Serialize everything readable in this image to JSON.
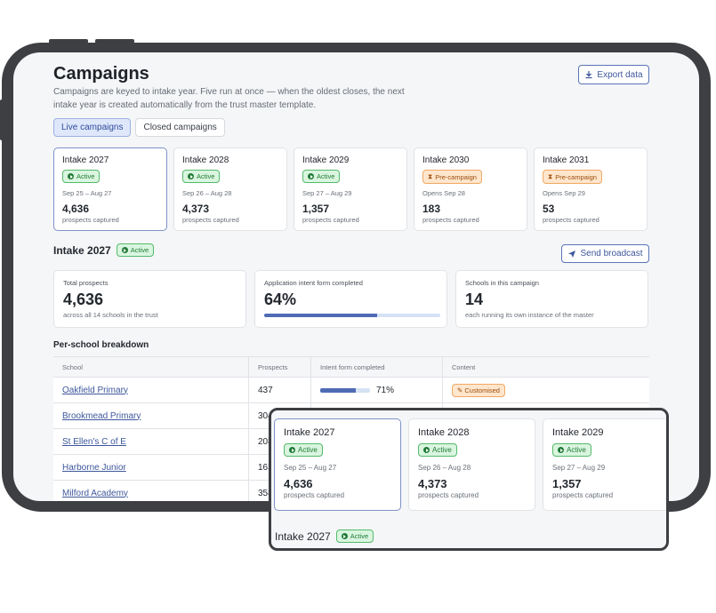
{
  "page": {
    "title": "Campaigns",
    "description": "Campaigns are keyed to intake year. Five run at once — when the oldest closes, the next intake year is created automatically from the trust master template.",
    "export_label": "Export data"
  },
  "tabs": [
    {
      "label": "Live campaigns",
      "active": true
    },
    {
      "label": "Closed campaigns",
      "active": false
    }
  ],
  "campaigns": [
    {
      "title": "Intake 2027",
      "status": "Active",
      "dates": "Sep 25 – Aug 27",
      "count": "4,636",
      "sub": "prospects captured"
    },
    {
      "title": "Intake 2028",
      "status": "Active",
      "dates": "Sep 26 – Aug 28",
      "count": "4,373",
      "sub": "prospects captured"
    },
    {
      "title": "Intake 2029",
      "status": "Active",
      "dates": "Sep 27 – Aug 29",
      "count": "1,357",
      "sub": "prospects captured"
    },
    {
      "title": "Intake 2030",
      "status": "Pre-campaign",
      "dates": "Opens Sep 28",
      "count": "183",
      "sub": "prospects captured"
    },
    {
      "title": "Intake 2031",
      "status": "Pre-campaign",
      "dates": "Opens Sep 29",
      "count": "53",
      "sub": "prospects captured"
    }
  ],
  "detail": {
    "title": "Intake 2027",
    "status": "Active",
    "broadcast_label": "Send broadcast",
    "stats": [
      {
        "label": "Total prospects",
        "value": "4,636",
        "sub": "across all 14 schools in the trust"
      },
      {
        "label": "Application intent form completed",
        "value": "64%",
        "progress": 0.64
      },
      {
        "label": "Schools in this campaign",
        "value": "14",
        "sub": "each running its own instance of the master"
      }
    ]
  },
  "breakdown": {
    "title": "Per-school breakdown",
    "headers": [
      "School",
      "Prospects",
      "Intent form completed",
      "Content"
    ],
    "rows": [
      {
        "school": "Oakfield Primary",
        "prospects": "437",
        "intent": "71%",
        "intent_value": 0.71,
        "content": "Customised"
      },
      {
        "school": "Brookmead Primary",
        "prospects": "304"
      },
      {
        "school": "St Ellen's C of E",
        "prospects": "208"
      },
      {
        "school": "Harborne Junior",
        "prospects": "163"
      },
      {
        "school": "Milford Academy",
        "prospects": "358"
      }
    ]
  },
  "colors": {
    "accent": "#3e579c",
    "active_badge": "#d9f5df",
    "pre_badge": "#ffe6cc",
    "frame": "#3d3f43"
  }
}
